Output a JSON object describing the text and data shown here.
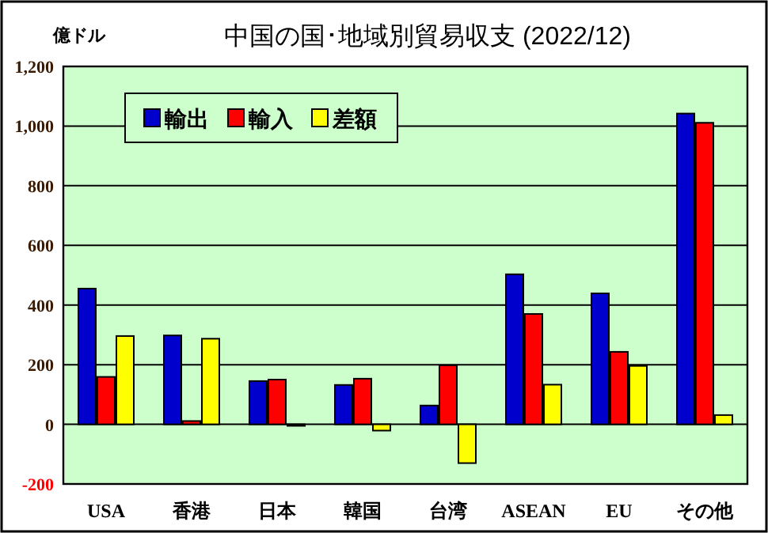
{
  "chart_data": {
    "type": "bar",
    "title": "中国の国･地域別貿易収支 (2022/12)",
    "ylabel": "億ドル",
    "categories": [
      "USA",
      "香港",
      "日本",
      "韓国",
      "台湾",
      "ASEAN",
      "EU",
      "その他"
    ],
    "series": [
      {
        "name": "輸出",
        "color": "#0000cc",
        "values": [
          455,
          298,
          145,
          132,
          63,
          503,
          439,
          1042
        ]
      },
      {
        "name": "輸入",
        "color": "#ff0000",
        "values": [
          159,
          11,
          150,
          153,
          198,
          370,
          243,
          1011
        ]
      },
      {
        "name": "差額",
        "color": "#ffff00",
        "values": [
          296,
          287,
          -5,
          -21,
          -130,
          133,
          196,
          31
        ]
      }
    ],
    "ylim": [
      -200,
      1200
    ],
    "yticks": [
      -200,
      0,
      200,
      400,
      600,
      800,
      {
        "value": 1000,
        "label": "1,000"
      },
      {
        "value": 1200,
        "label": "1,200"
      }
    ],
    "grid": "y",
    "legend": "top left"
  }
}
